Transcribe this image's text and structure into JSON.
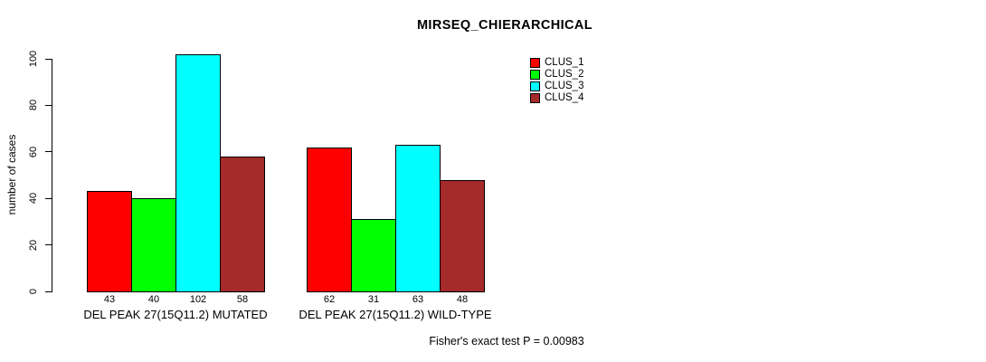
{
  "chart_data": {
    "type": "bar",
    "title": "MIRSEQ_CHIERARCHICAL",
    "ylabel": "number of cases",
    "xlabel": "",
    "ylim": [
      0,
      100
    ],
    "yticks": [
      0,
      20,
      40,
      60,
      80,
      100
    ],
    "categories": [
      "DEL PEAK 27(15Q11.2) MUTATED",
      "DEL PEAK 27(15Q11.2) WILD-TYPE"
    ],
    "series": [
      {
        "name": "CLUS_1",
        "color": "#FF0000",
        "values": [
          43,
          62
        ]
      },
      {
        "name": "CLUS_2",
        "color": "#00FF00",
        "values": [
          40,
          31
        ]
      },
      {
        "name": "CLUS_3",
        "color": "#00FFFF",
        "values": [
          102,
          63
        ]
      },
      {
        "name": "CLUS_4",
        "color": "#A52A2A",
        "values": [
          58,
          48
        ]
      }
    ],
    "bar_value_labels": [
      [
        43,
        40,
        102,
        58
      ],
      [
        62,
        31,
        63,
        48
      ]
    ],
    "legend": {
      "position": "top-right",
      "entries": [
        "CLUS_1",
        "CLUS_2",
        "CLUS_3",
        "CLUS_4"
      ]
    },
    "grid": false,
    "annotation": "Fisher's exact test P = 0.00983"
  }
}
